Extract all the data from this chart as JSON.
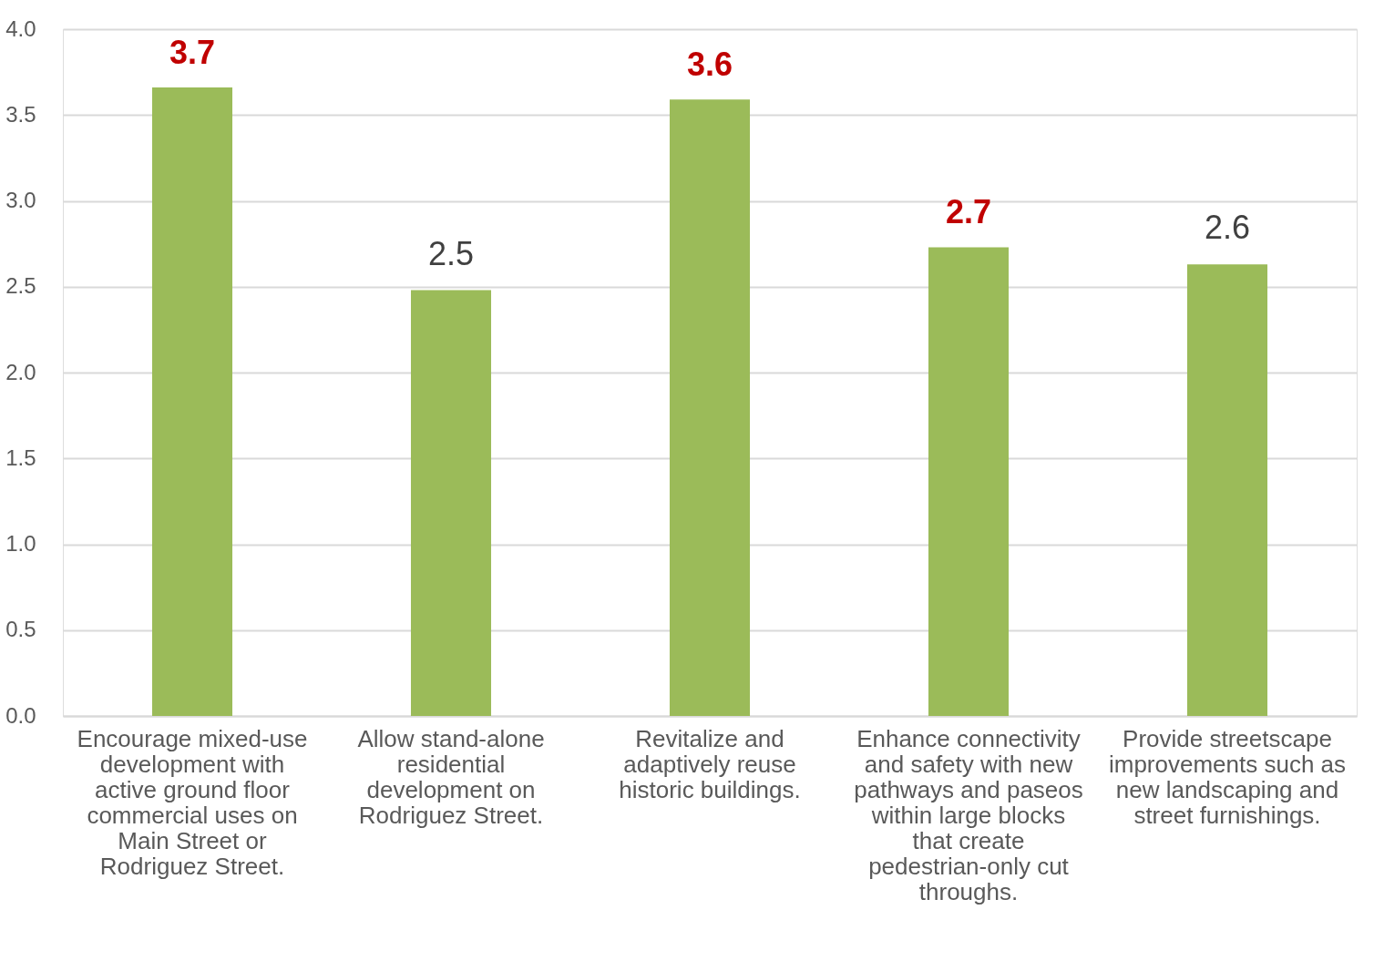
{
  "chart_data": {
    "type": "bar",
    "categories": [
      "Encourage mixed-use development with active ground floor commercial uses on Main Street or Rodriguez Street.",
      "Allow stand-alone residential development on Rodriguez Street.",
      "Revitalize and adaptively reuse historic buildings.",
      "Enhance connectivity and safety with new pathways and paseos within large blocks that create pedestrian-only cut throughs.",
      "Provide streetscape improvements such as new landscaping and street furnishings."
    ],
    "values": [
      3.66,
      2.48,
      3.59,
      2.73,
      2.63
    ],
    "color": "#9bbb59",
    "value_labels": [
      null,
      "2.5",
      null,
      null,
      "2.6"
    ],
    "annotations": [
      {
        "text": "3.7",
        "x": "Encourage mixed-use development with active ground floor commercial uses on Main Street or Rodriguez Street.",
        "y": 3.66
      },
      {
        "text": "3.6",
        "x": "Revitalize and adaptively reuse historic buildings.",
        "y": 3.59
      },
      {
        "text": "2.7",
        "x": "Enhance connectivity and safety with new pathways and paseos within large blocks that create pedestrian-only cut throughs.",
        "y": 2.73
      }
    ],
    "ylim": [
      0,
      4.0
    ],
    "yticks": [
      {
        "value": 0,
        "label": "0.0"
      },
      {
        "value": 0.5,
        "label": "0.5"
      },
      {
        "value": 1,
        "label": "1.0"
      },
      {
        "value": 1.5,
        "label": "1.5"
      },
      {
        "value": 2,
        "label": "2.0"
      },
      {
        "value": 2.5,
        "label": "2.5"
      },
      {
        "value": 3,
        "label": "3.0"
      },
      {
        "value": 3.5,
        "label": "3.5"
      },
      {
        "value": 4,
        "label": "4.0"
      }
    ],
    "grid": "y"
  }
}
